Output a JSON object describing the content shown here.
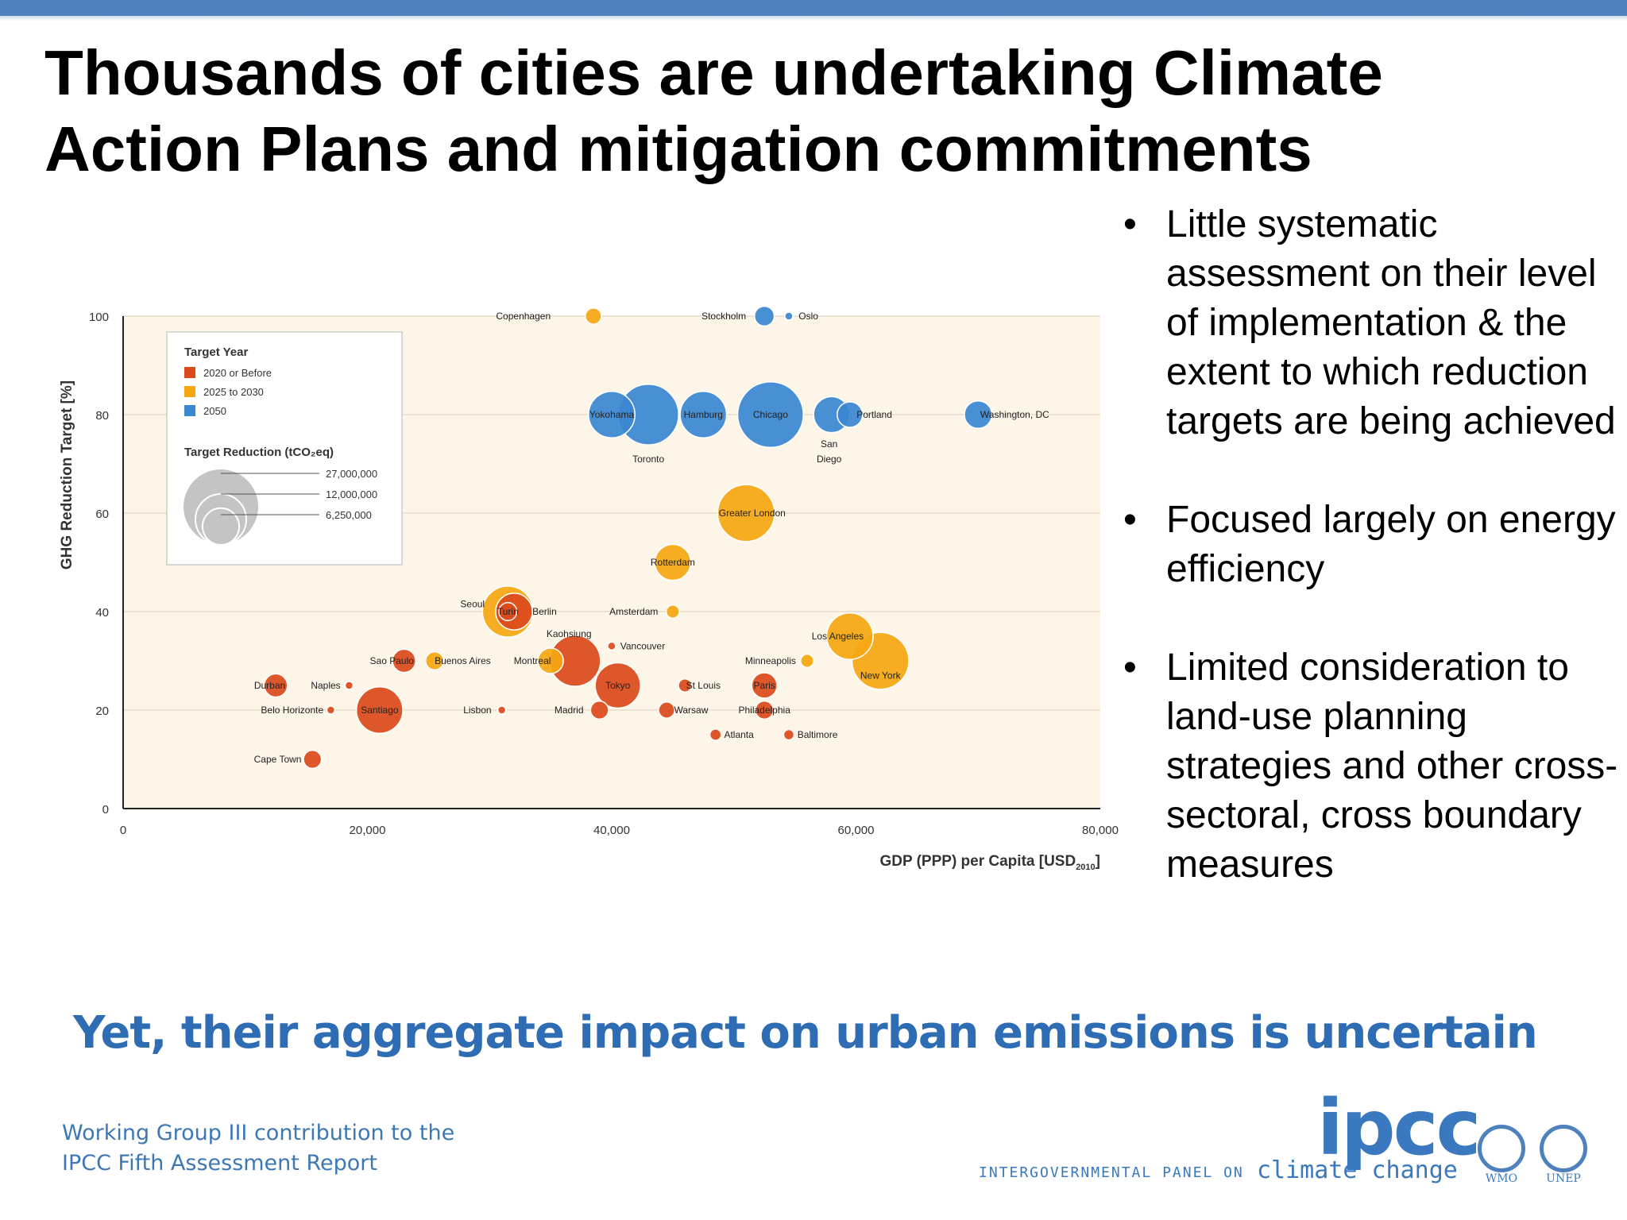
{
  "slide": {
    "title": "Thousands of cities are undertaking Climate Action Plans and mitigation commitments",
    "bullets": [
      "Little systematic assessment on their level of implementation & the extent to which reduction targets are being achieved",
      "Focused largely on energy efficiency",
      "Limited consideration to land-use planning strategies and other cross-sectoral, cross boundary measures"
    ],
    "tagline": "Yet, their aggregate impact on urban emissions is uncertain",
    "footer_line1": "Working Group III contribution to the",
    "footer_line2": "IPCC Fifth Assessment Report",
    "logo_text": "ipcc",
    "logo_subtitle": "INTERGOVERNMENTAL PANEL ON",
    "logo_climate": "climate change",
    "logo_wmo": "WMO",
    "logo_unep": "UNEP",
    "colors": {
      "topbar": "#4f81bd",
      "tagline": "#2e6db4",
      "footer": "#3d78b5",
      "plot_bg": "#fdf6e8",
      "target_2020_or_before": "#dc4a1c",
      "target_2025_to_2030": "#f5a712",
      "target_2050": "#3a87d1"
    }
  },
  "chart_data": {
    "type": "scatter",
    "subtype": "bubble",
    "xlabel": "GDP (PPP) per Capita [USD",
    "xlabel_sub": "2010",
    "ylabel": "GHG Reduction Target [%]",
    "xlim": [
      0,
      80000
    ],
    "ylim": [
      0,
      100
    ],
    "x_ticks": [
      0,
      20000,
      40000,
      60000,
      80000
    ],
    "x_tick_labels": [
      "0",
      "20,000",
      "40,000",
      "60,000",
      "80,000"
    ],
    "y_ticks": [
      0,
      20,
      40,
      60,
      80,
      100
    ],
    "y_tick_labels": [
      "0",
      "20",
      "40",
      "60",
      "80",
      "100"
    ],
    "grid": "horizontal",
    "legend": {
      "placement": "top-left",
      "color_title": "Target Year",
      "size_title": "Target Reduction (tCO₂eq)",
      "color_entries": [
        {
          "label": "2020 or Before",
          "color": "#dc4a1c"
        },
        {
          "label": "2025 to 2030",
          "color": "#f5a712"
        },
        {
          "label": "2050",
          "color": "#3a87d1"
        }
      ],
      "size_entries": [
        {
          "label": "27,000,000",
          "value": 27000000
        },
        {
          "label": "12,000,000",
          "value": 12000000
        },
        {
          "label": "6,250,000",
          "value": 6250000
        }
      ]
    },
    "series": [
      {
        "name": "2020 or Before",
        "points": [
          {
            "city": "Durban",
            "x": 12500,
            "y": 25,
            "size": 2500000
          },
          {
            "city": "Naples",
            "x": 18500,
            "y": 25,
            "size": 150000
          },
          {
            "city": "Belo Horizonte",
            "x": 17000,
            "y": 20,
            "size": 150000
          },
          {
            "city": "Cape Town",
            "x": 15500,
            "y": 10,
            "size": 1500000
          },
          {
            "city": "Santiago",
            "x": 21000,
            "y": 20,
            "size": 10000000
          },
          {
            "city": "Sao Paulo",
            "x": 23000,
            "y": 30,
            "size": 2500000
          },
          {
            "city": "Lisbon",
            "x": 31000,
            "y": 20,
            "size": 150000
          },
          {
            "city": "Turin",
            "x": 31500,
            "y": 40,
            "size": 1500000
          },
          {
            "city": "Berlin",
            "x": 32000,
            "y": 40,
            "size": 6250000
          },
          {
            "city": "Kaohsiung",
            "x": 37000,
            "y": 30,
            "size": 12000000
          },
          {
            "city": "Madrid",
            "x": 39000,
            "y": 20,
            "size": 1500000
          },
          {
            "city": "Tokyo",
            "x": 40500,
            "y": 25,
            "size": 9500000
          },
          {
            "city": "Vancouver",
            "x": 40000,
            "y": 33,
            "size": 150000
          },
          {
            "city": "Warsaw",
            "x": 44500,
            "y": 20,
            "size": 1200000
          },
          {
            "city": "St Louis",
            "x": 46000,
            "y": 25,
            "size": 800000
          },
          {
            "city": "Atlanta",
            "x": 48500,
            "y": 15,
            "size": 600000
          },
          {
            "city": "Paris",
            "x": 52500,
            "y": 25,
            "size": 3000000
          },
          {
            "city": "Philadelphia",
            "x": 52500,
            "y": 20,
            "size": 1500000
          },
          {
            "city": "Baltimore",
            "x": 54500,
            "y": 15,
            "size": 500000
          }
        ]
      },
      {
        "name": "2025 to 2030",
        "points": [
          {
            "city": "Copenhagen",
            "x": 38500,
            "y": 100,
            "size": 1200000
          },
          {
            "city": "Greater London",
            "x": 51000,
            "y": 60,
            "size": 15000000
          },
          {
            "city": "Rotterdam",
            "x": 45000,
            "y": 50,
            "size": 6000000
          },
          {
            "city": "Seoul",
            "x": 31500,
            "y": 40,
            "size": 12000000
          },
          {
            "city": "Amsterdam",
            "x": 45000,
            "y": 40,
            "size": 800000
          },
          {
            "city": "Montreal",
            "x": 35000,
            "y": 30,
            "size": 3000000
          },
          {
            "city": "Buenos Aires",
            "x": 25500,
            "y": 30,
            "size": 1500000
          },
          {
            "city": "Minneapolis",
            "x": 56000,
            "y": 30,
            "size": 800000
          },
          {
            "city": "Los Angeles",
            "x": 59500,
            "y": 35,
            "size": 10000000
          },
          {
            "city": "New York",
            "x": 62000,
            "y": 30,
            "size": 15000000
          }
        ]
      },
      {
        "name": "2050",
        "points": [
          {
            "city": "Stockholm",
            "x": 52500,
            "y": 100,
            "size": 1800000
          },
          {
            "city": "Oslo",
            "x": 54500,
            "y": 100,
            "size": 300000
          },
          {
            "city": "Yokohama",
            "x": 40000,
            "y": 80,
            "size": 10000000
          },
          {
            "city": "Toronto",
            "x": 43000,
            "y": 80,
            "size": 17000000
          },
          {
            "city": "Hamburg",
            "x": 47500,
            "y": 80,
            "size": 10000000
          },
          {
            "city": "Chicago",
            "x": 53000,
            "y": 80,
            "size": 20000000
          },
          {
            "city": "San Diego",
            "x": 58000,
            "y": 80,
            "size": 6000000
          },
          {
            "city": "Portland",
            "x": 59500,
            "y": 80,
            "size": 3000000
          },
          {
            "city": "Washington, DC",
            "x": 70000,
            "y": 80,
            "size": 3500000
          }
        ]
      }
    ],
    "labels": [
      {
        "text": "Copenhagen",
        "x": 35000,
        "y": 100,
        "anchor": "end"
      },
      {
        "text": "Stockholm",
        "x": 51000,
        "y": 100,
        "anchor": "end"
      },
      {
        "text": "Oslo",
        "x": 55300,
        "y": 100,
        "anchor": "start"
      },
      {
        "text": "Yokohama",
        "x": 40000,
        "y": 80,
        "anchor": "middle"
      },
      {
        "text": "Hamburg",
        "x": 47500,
        "y": 80,
        "anchor": "middle"
      },
      {
        "text": "Chicago",
        "x": 53000,
        "y": 80,
        "anchor": "middle"
      },
      {
        "text": "Portland",
        "x": 61500,
        "y": 80,
        "anchor": "middle"
      },
      {
        "text": "Washington, DC",
        "x": 73000,
        "y": 80,
        "anchor": "middle"
      },
      {
        "text": "Toronto",
        "x": 43000,
        "y": 71,
        "anchor": "middle"
      },
      {
        "text": "San",
        "x": 57800,
        "y": 74,
        "anchor": "middle"
      },
      {
        "text": "Diego",
        "x": 57800,
        "y": 71,
        "anchor": "middle"
      },
      {
        "text": "Greater London",
        "x": 51500,
        "y": 60,
        "anchor": "middle"
      },
      {
        "text": "Rotterdam",
        "x": 45000,
        "y": 50,
        "anchor": "middle"
      },
      {
        "text": "Seoul",
        "x": 29600,
        "y": 41.5,
        "anchor": "end"
      },
      {
        "text": "Turin",
        "x": 31500,
        "y": 40,
        "anchor": "middle"
      },
      {
        "text": "Berlin",
        "x": 34500,
        "y": 40,
        "anchor": "middle"
      },
      {
        "text": "Amsterdam",
        "x": 43800,
        "y": 40,
        "anchor": "end"
      },
      {
        "text": "Kaohsiung",
        "x": 36500,
        "y": 35.5,
        "anchor": "middle"
      },
      {
        "text": "Vancouver",
        "x": 40700,
        "y": 33,
        "anchor": "start"
      },
      {
        "text": "Sao Paulo",
        "x": 22000,
        "y": 30,
        "anchor": "middle"
      },
      {
        "text": "Buenos Aires",
        "x": 27800,
        "y": 30,
        "anchor": "middle"
      },
      {
        "text": "Montreal",
        "x": 33500,
        "y": 30,
        "anchor": "middle"
      },
      {
        "text": "Minneapolis",
        "x": 53000,
        "y": 30,
        "anchor": "middle"
      },
      {
        "text": "Los Angeles",
        "x": 58500,
        "y": 35,
        "anchor": "middle"
      },
      {
        "text": "New York",
        "x": 62000,
        "y": 27,
        "anchor": "middle"
      },
      {
        "text": "Durban",
        "x": 12000,
        "y": 25,
        "anchor": "middle"
      },
      {
        "text": "Naples",
        "x": 17800,
        "y": 25,
        "anchor": "end"
      },
      {
        "text": "Tokyo",
        "x": 40500,
        "y": 25,
        "anchor": "middle"
      },
      {
        "text": "St Louis",
        "x": 47500,
        "y": 25,
        "anchor": "middle"
      },
      {
        "text": "Paris",
        "x": 52500,
        "y": 25,
        "anchor": "middle"
      },
      {
        "text": "Belo Horizonte",
        "x": 16400,
        "y": 20,
        "anchor": "end"
      },
      {
        "text": "Santiago",
        "x": 21000,
        "y": 20,
        "anchor": "middle"
      },
      {
        "text": "Lisbon",
        "x": 29000,
        "y": 20,
        "anchor": "middle"
      },
      {
        "text": "Madrid",
        "x": 36500,
        "y": 20,
        "anchor": "middle"
      },
      {
        "text": "Warsaw",
        "x": 46500,
        "y": 20,
        "anchor": "middle"
      },
      {
        "text": "Philadelphia",
        "x": 52500,
        "y": 20,
        "anchor": "middle"
      },
      {
        "text": "Atlanta",
        "x": 49200,
        "y": 15,
        "anchor": "start"
      },
      {
        "text": "Baltimore",
        "x": 55200,
        "y": 15,
        "anchor": "start"
      },
      {
        "text": "Cape Town",
        "x": 14600,
        "y": 10,
        "anchor": "end"
      }
    ]
  }
}
